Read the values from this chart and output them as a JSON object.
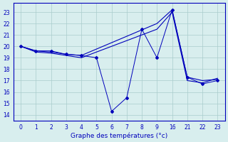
{
  "xlabel": "Graphe des températures (°c)",
  "background_color": "#d8eeee",
  "grid_color": "#aacccc",
  "line_color": "#0000bb",
  "x_labels": [
    "0",
    "1",
    "2",
    "3",
    "4",
    "5",
    "6",
    "7",
    "8",
    "9",
    "16",
    "21",
    "22",
    "23"
  ],
  "line1_y": [
    20.0,
    19.6,
    19.6,
    19.3,
    19.2,
    19.0,
    14.3,
    15.5,
    21.5,
    19.0,
    23.2,
    17.3,
    16.7,
    17.0
  ],
  "line2_x_idx": [
    0,
    1,
    2,
    3,
    4,
    9,
    10,
    11,
    12,
    13
  ],
  "line2_y": [
    20.0,
    19.6,
    19.5,
    19.3,
    19.2,
    22.0,
    23.2,
    17.3,
    17.0,
    17.1
  ],
  "line3_x_idx": [
    0,
    1,
    2,
    3,
    4,
    9,
    10,
    11,
    12,
    13
  ],
  "line3_y": [
    20.0,
    19.5,
    19.4,
    19.2,
    19.0,
    21.5,
    23.0,
    17.0,
    16.8,
    17.2
  ],
  "yticks": [
    14,
    15,
    16,
    17,
    18,
    19,
    20,
    21,
    22,
    23
  ],
  "ylim": [
    13.5,
    23.8
  ]
}
